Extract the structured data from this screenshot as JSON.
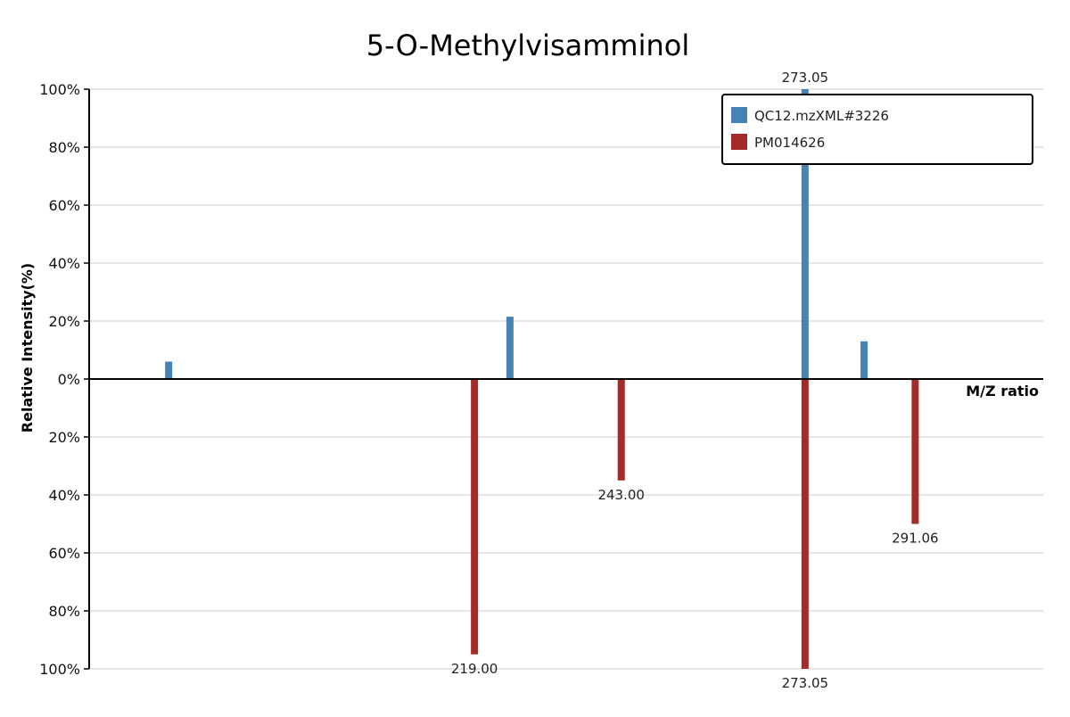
{
  "chart_data": {
    "type": "bar",
    "title": "5-O-Methylvisamminol",
    "xlabel": "M/Z ratio",
    "ylabel": "Relative Intensity(%)",
    "x_range": [
      156,
      312
    ],
    "ylim": [
      -100,
      100
    ],
    "y_ticks": [
      100,
      80,
      60,
      40,
      20,
      0,
      -20,
      -40,
      -60,
      -80,
      -100
    ],
    "y_tick_labels": [
      "100%",
      "80%",
      "60%",
      "40%",
      "20%",
      "0%",
      "20%",
      "40%",
      "60%",
      "80%",
      "100%"
    ],
    "grid": true,
    "legend_position": "top-right",
    "series": [
      {
        "name": "QC12.mzXML#3226",
        "color": "#4682b4",
        "direction": "up",
        "peaks": [
          {
            "mz": 169.0,
            "intensity": 6,
            "label": ""
          },
          {
            "mz": 224.8,
            "intensity": 21.5,
            "label": ""
          },
          {
            "mz": 273.05,
            "intensity": 100,
            "label": "273.05"
          },
          {
            "mz": 282.7,
            "intensity": 13,
            "label": ""
          }
        ]
      },
      {
        "name": "PM014626",
        "color": "#a52a2a",
        "direction": "down",
        "peaks": [
          {
            "mz": 219.0,
            "intensity": 95,
            "label": "219.00"
          },
          {
            "mz": 243.0,
            "intensity": 35,
            "label": "243.00"
          },
          {
            "mz": 273.05,
            "intensity": 100,
            "label": "273.05"
          },
          {
            "mz": 291.06,
            "intensity": 50,
            "label": "291.06"
          }
        ]
      }
    ]
  }
}
